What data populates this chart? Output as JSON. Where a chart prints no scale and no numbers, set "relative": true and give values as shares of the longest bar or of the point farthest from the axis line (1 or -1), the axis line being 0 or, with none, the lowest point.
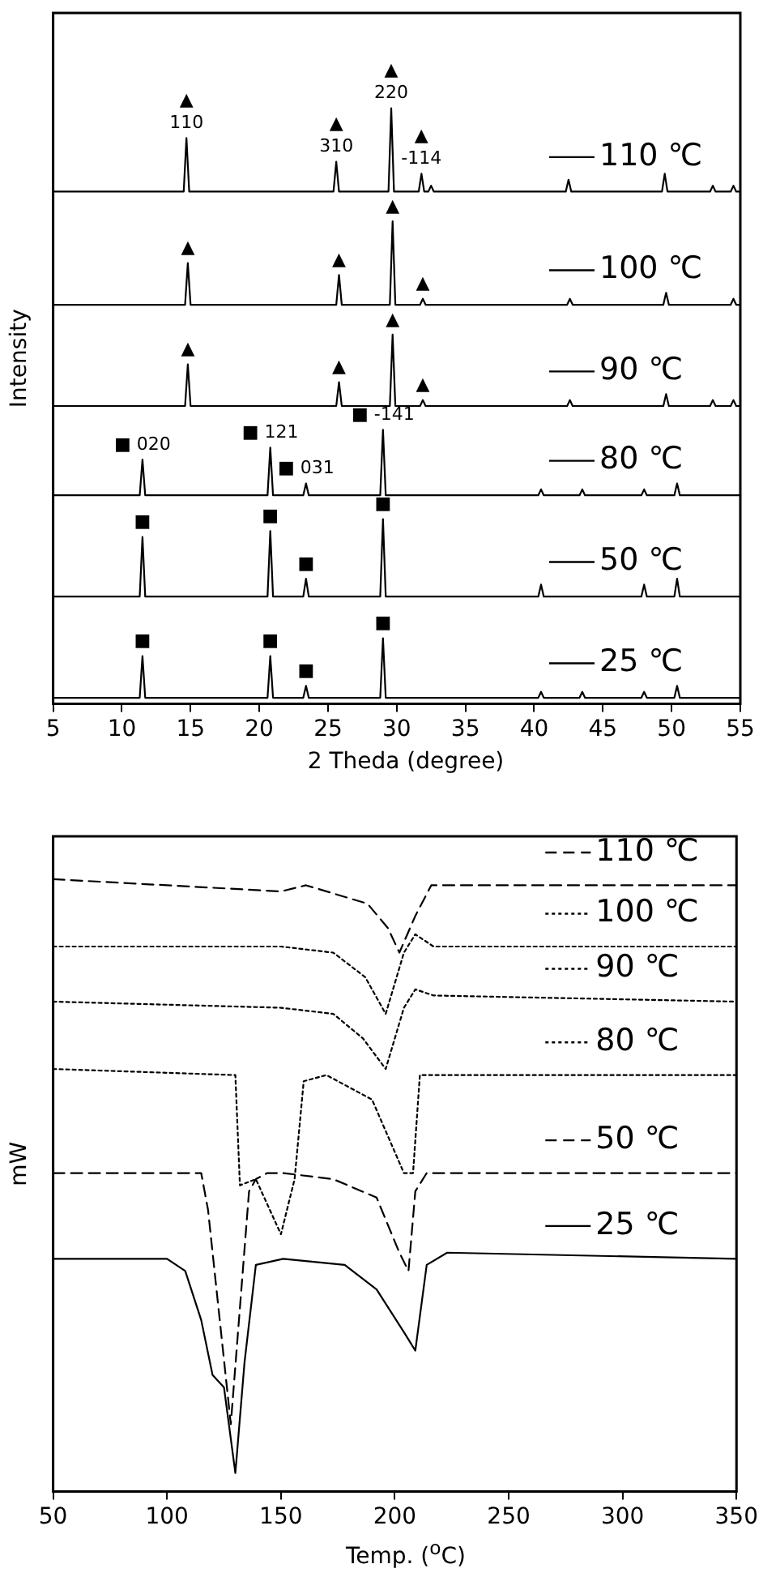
{
  "chart_data": [
    {
      "type": "line",
      "relative": true,
      "xlabel": "2 Theda (degree)",
      "ylabel": "Intensity",
      "xlim": [
        5,
        55
      ],
      "xticks": [
        5,
        10,
        15,
        20,
        25,
        30,
        35,
        40,
        45,
        50,
        55
      ],
      "series": [
        {
          "name": "110 ℃",
          "color": "#000000",
          "line_style": "solid",
          "x": [
            5,
            14.5,
            14.7,
            14.9,
            25.4,
            25.6,
            25.8,
            29.4,
            29.6,
            29.8,
            31.6,
            31.8,
            32.0,
            32.3,
            32.5,
            32.7,
            42.3,
            42.5,
            42.7,
            49.3,
            49.5,
            49.7,
            52.8,
            53,
            53.2,
            54.3,
            54.5,
            54.7,
            55
          ],
          "values": [
            0.86,
            0.86,
            0.95,
            0.86,
            0.86,
            0.91,
            0.86,
            0.86,
            1.0,
            0.86,
            0.86,
            0.89,
            0.86,
            0.86,
            0.87,
            0.86,
            0.86,
            0.88,
            0.86,
            0.86,
            0.89,
            0.86,
            0.86,
            0.87,
            0.86,
            0.86,
            0.87,
            0.86,
            0.86
          ]
        },
        {
          "name": "100 ℃",
          "color": "#000000",
          "line_style": "solid",
          "x": [
            5,
            14.6,
            14.8,
            15.0,
            25.6,
            25.8,
            26.0,
            29.5,
            29.7,
            29.9,
            31.7,
            31.9,
            32.1,
            42.4,
            42.6,
            42.8,
            49.4,
            49.6,
            49.8,
            54.3,
            54.5,
            54.7,
            55
          ],
          "values": [
            0.67,
            0.67,
            0.74,
            0.67,
            0.67,
            0.72,
            0.67,
            0.67,
            0.81,
            0.67,
            0.67,
            0.68,
            0.67,
            0.67,
            0.68,
            0.67,
            0.67,
            0.69,
            0.67,
            0.67,
            0.68,
            0.67,
            0.67
          ]
        },
        {
          "name": "90 ℃",
          "color": "#000000",
          "line_style": "solid",
          "x": [
            5,
            14.6,
            14.8,
            15.0,
            25.6,
            25.8,
            26.0,
            29.5,
            29.7,
            29.9,
            31.7,
            31.9,
            32.1,
            42.4,
            42.6,
            42.8,
            49.4,
            49.6,
            49.8,
            52.8,
            53,
            53.2,
            54.3,
            54.5,
            54.7,
            55
          ],
          "values": [
            0.5,
            0.5,
            0.57,
            0.5,
            0.5,
            0.54,
            0.5,
            0.5,
            0.62,
            0.5,
            0.5,
            0.51,
            0.5,
            0.5,
            0.51,
            0.5,
            0.5,
            0.52,
            0.5,
            0.5,
            0.51,
            0.5,
            0.5,
            0.51,
            0.5,
            0.5
          ]
        },
        {
          "name": "80 ℃",
          "color": "#000000",
          "line_style": "solid",
          "x": [
            5,
            11.3,
            11.5,
            11.7,
            20.6,
            20.8,
            21.0,
            23.2,
            23.4,
            23.6,
            28.8,
            29.0,
            29.2,
            40.3,
            40.5,
            40.7,
            43.3,
            43.5,
            43.7,
            47.8,
            48,
            48.2,
            50.2,
            50.4,
            50.6,
            55
          ],
          "values": [
            0.35,
            0.35,
            0.41,
            0.35,
            0.35,
            0.43,
            0.35,
            0.35,
            0.37,
            0.35,
            0.35,
            0.46,
            0.35,
            0.35,
            0.36,
            0.35,
            0.35,
            0.36,
            0.35,
            0.35,
            0.36,
            0.35,
            0.35,
            0.37,
            0.35,
            0.35
          ]
        },
        {
          "name": "50 ℃",
          "color": "#000000",
          "line_style": "solid",
          "x": [
            5,
            11.3,
            11.5,
            11.7,
            20.6,
            20.8,
            21.0,
            23.2,
            23.4,
            23.6,
            28.8,
            29.0,
            29.2,
            40.3,
            40.5,
            40.7,
            47.8,
            48,
            48.2,
            50.2,
            50.4,
            50.6,
            55
          ],
          "values": [
            0.18,
            0.18,
            0.28,
            0.18,
            0.18,
            0.29,
            0.18,
            0.18,
            0.21,
            0.18,
            0.18,
            0.31,
            0.18,
            0.18,
            0.2,
            0.18,
            0.18,
            0.2,
            0.18,
            0.18,
            0.21,
            0.18,
            0.18
          ]
        },
        {
          "name": "25 ℃",
          "color": "#000000",
          "line_style": "solid",
          "x": [
            5,
            11.3,
            11.5,
            11.7,
            20.6,
            20.8,
            21.0,
            23.2,
            23.4,
            23.6,
            28.8,
            29.0,
            29.2,
            40.3,
            40.5,
            40.7,
            43.3,
            43.5,
            43.7,
            47.8,
            48,
            48.2,
            50.2,
            50.4,
            50.6,
            55
          ],
          "values": [
            0.01,
            0.01,
            0.08,
            0.01,
            0.01,
            0.08,
            0.01,
            0.01,
            0.03,
            0.01,
            0.01,
            0.11,
            0.01,
            0.01,
            0.02,
            0.01,
            0.01,
            0.02,
            0.01,
            0.01,
            0.02,
            0.01,
            0.01,
            0.03,
            0.01,
            0.01
          ]
        }
      ],
      "legend": "right",
      "annotations": [
        {
          "text": "110",
          "x": 14.7,
          "y": 0.95
        },
        {
          "text": "▲",
          "x": 14.7,
          "y": 0.95
        },
        {
          "text": "310",
          "x": 25.6,
          "y": 0.91
        },
        {
          "text": "▲",
          "x": 25.6,
          "y": 0.91
        },
        {
          "text": "220",
          "x": 29.6,
          "y": 1.0
        },
        {
          "text": "▲",
          "x": 29.6,
          "y": 1.0
        },
        {
          "text": "-114",
          "x": 31.8,
          "y": 0.89
        },
        {
          "text": "▲",
          "x": 31.8,
          "y": 0.89
        },
        {
          "text": "▲",
          "x": 14.8,
          "y": 0.74
        },
        {
          "text": "▲",
          "x": 25.8,
          "y": 0.72
        },
        {
          "text": "▲",
          "x": 29.7,
          "y": 0.81
        },
        {
          "text": "▲",
          "x": 31.9,
          "y": 0.68
        },
        {
          "text": "▲",
          "x": 14.8,
          "y": 0.57
        },
        {
          "text": "▲",
          "x": 25.8,
          "y": 0.54
        },
        {
          "text": "▲",
          "x": 29.7,
          "y": 0.62
        },
        {
          "text": "▲",
          "x": 31.9,
          "y": 0.51
        },
        {
          "text": "■ 020",
          "x": 11.5,
          "y": 0.41
        },
        {
          "text": "■ 121",
          "x": 20.8,
          "y": 0.43
        },
        {
          "text": "■ 031",
          "x": 23.4,
          "y": 0.37
        },
        {
          "text": "■ -141",
          "x": 29.0,
          "y": 0.46
        },
        {
          "text": "■",
          "x": 11.5,
          "y": 0.28
        },
        {
          "text": "■",
          "x": 20.8,
          "y": 0.29
        },
        {
          "text": "■",
          "x": 23.4,
          "y": 0.21
        },
        {
          "text": "■",
          "x": 29.0,
          "y": 0.31
        },
        {
          "text": "■",
          "x": 11.5,
          "y": 0.08
        },
        {
          "text": "■",
          "x": 20.8,
          "y": 0.08
        },
        {
          "text": "■",
          "x": 23.4,
          "y": 0.03
        },
        {
          "text": "■",
          "x": 29.0,
          "y": 0.11
        }
      ]
    },
    {
      "type": "line",
      "relative": true,
      "legend": "right",
      "xlabel": "Temp. ($^{o}$C)",
      "ylabel": "mW",
      "xlim": [
        50,
        350
      ],
      "xticks": [
        50,
        100,
        150,
        200,
        250,
        300,
        350
      ],
      "series": [
        {
          "name": "110 ℃",
          "color": "#000000",
          "line_style": "dashed",
          "x": [
            50,
            100,
            150,
            161,
            188,
            197,
            202,
            209,
            216,
            240,
            350
          ],
          "values": [
            1.0,
            0.99,
            0.98,
            0.99,
            0.96,
            0.92,
            0.88,
            0.94,
            0.99,
            0.99,
            0.99
          ]
        },
        {
          "name": "100 ℃",
          "color": "#000000",
          "line_style": "dotted",
          "x": [
            50,
            150,
            173,
            187,
            196,
            204,
            209,
            217,
            350
          ],
          "values": [
            0.89,
            0.89,
            0.88,
            0.84,
            0.78,
            0.88,
            0.91,
            0.89,
            0.89
          ]
        },
        {
          "name": "90 ℃",
          "color": "#000000",
          "line_style": "dotted",
          "x": [
            50,
            150,
            173,
            186,
            196,
            204,
            209,
            217,
            350
          ],
          "values": [
            0.8,
            0.79,
            0.78,
            0.74,
            0.69,
            0.79,
            0.82,
            0.81,
            0.8
          ]
        },
        {
          "name": "80 ℃",
          "color": "#000000",
          "line_style": "dotted",
          "x": [
            50,
            130,
            132,
            139,
            150,
            156,
            160,
            170,
            190,
            204,
            208,
            211,
            221,
            350
          ],
          "values": [
            0.69,
            0.68,
            0.5,
            0.51,
            0.42,
            0.51,
            0.67,
            0.68,
            0.64,
            0.52,
            0.52,
            0.68,
            0.68,
            0.68
          ]
        },
        {
          "name": "50 ℃",
          "color": "#000000",
          "line_style": "dashed",
          "x": [
            50,
            115,
            118,
            128,
            136,
            139,
            144,
            151,
            173,
            192,
            202,
            206,
            209,
            214,
            350
          ],
          "values": [
            0.52,
            0.52,
            0.46,
            0.11,
            0.49,
            0.51,
            0.52,
            0.52,
            0.51,
            0.48,
            0.39,
            0.36,
            0.49,
            0.52,
            0.52
          ]
        },
        {
          "name": "25 ℃",
          "color": "#000000",
          "line_style": "solid",
          "x": [
            50,
            100,
            108,
            115,
            120,
            125,
            130,
            134,
            139,
            151,
            178,
            192,
            204,
            209,
            214,
            223,
            350
          ],
          "values": [
            0.38,
            0.38,
            0.36,
            0.28,
            0.19,
            0.17,
            0.03,
            0.21,
            0.37,
            0.38,
            0.37,
            0.33,
            0.26,
            0.23,
            0.37,
            0.39,
            0.38
          ]
        }
      ]
    }
  ]
}
